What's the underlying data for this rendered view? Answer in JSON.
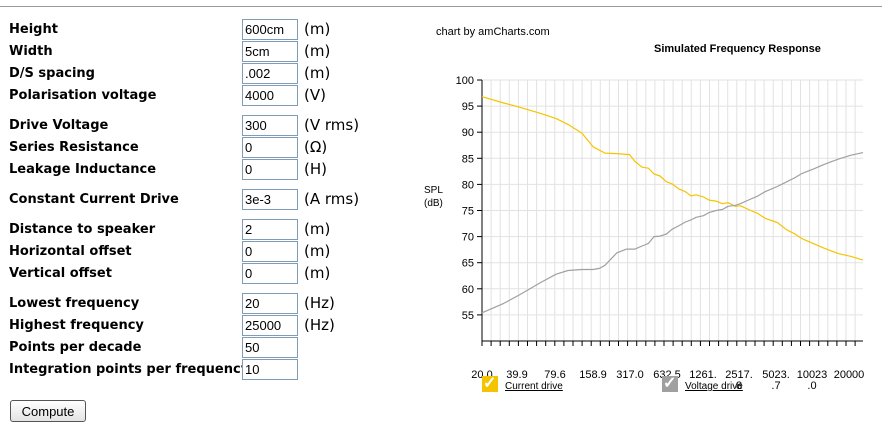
{
  "form": {
    "rows": [
      {
        "label": "Height",
        "value": "600cm",
        "unit": "(m)"
      },
      {
        "label": "Width",
        "value": "5cm",
        "unit": "(m)"
      },
      {
        "label": "D/S spacing",
        "value": ".002",
        "unit": "(m)"
      },
      {
        "label": "Polarisation voltage",
        "value": "4000",
        "unit": "(V)"
      },
      {
        "label": "Drive Voltage",
        "value": "300",
        "unit": "(V rms)"
      },
      {
        "label": "Series Resistance",
        "value": "0",
        "unit": "(Ω)"
      },
      {
        "label": "Leakage Inductance",
        "value": "0",
        "unit": "(H)"
      },
      {
        "label": "Constant Current Drive",
        "value": "3e-3",
        "unit": "(A rms)"
      },
      {
        "label": "Distance to speaker",
        "value": "2",
        "unit": "(m)"
      },
      {
        "label": "Horizontal offset",
        "value": "0",
        "unit": "(m)"
      },
      {
        "label": "Vertical offset",
        "value": "0",
        "unit": "(m)"
      },
      {
        "label": "Lowest frequency",
        "value": "20",
        "unit": "(Hz)"
      },
      {
        "label": "Highest frequency",
        "value": "25000",
        "unit": "(Hz)"
      },
      {
        "label": "Points per decade",
        "value": "50",
        "unit": ""
      },
      {
        "label": "Integration points per frequency",
        "value": "10",
        "unit": ""
      }
    ],
    "compute_label": "Compute"
  },
  "chart_data": {
    "type": "line",
    "credit": "chart by amCharts.com",
    "title": "Simulated Frequency Response",
    "ylabel": "SPL\n(dB)",
    "ylim": [
      50,
      100
    ],
    "y_ticks": [
      55,
      60,
      65,
      70,
      75,
      80,
      85,
      90,
      95,
      100
    ],
    "grid": true,
    "x_tick_labels": [
      [
        "20.0"
      ],
      [
        "39.9"
      ],
      [
        "79.6"
      ],
      [
        "158.9"
      ],
      [
        "317.0"
      ],
      [
        "632.5"
      ],
      [
        "1261."
      ],
      [
        "2517.",
        "8"
      ],
      [
        "5023.",
        ".7"
      ],
      [
        "10023",
        ".0"
      ],
      [
        "20000"
      ]
    ],
    "colors": {
      "current": "#f5c400",
      "voltage": "#a0a0a0"
    },
    "series": [
      {
        "name": "Current drive",
        "x": [
          20,
          30,
          40,
          60,
          80,
          100,
          130,
          160,
          200,
          250,
          317,
          350,
          400,
          450,
          500,
          560,
          632.5,
          700,
          800,
          900,
          1000,
          1100,
          1261,
          1400,
          1600,
          1800,
          2000,
          2300,
          2517.8,
          3000,
          3500,
          4000,
          5023.7,
          6000,
          7000,
          8000,
          10023,
          12000,
          14000,
          16000,
          20000,
          25000
        ],
        "values": [
          96.8,
          95.6,
          94.8,
          93.6,
          92.6,
          91.5,
          89.8,
          87.2,
          86.0,
          85.9,
          85.7,
          84.4,
          83.3,
          83.1,
          82.0,
          81.6,
          80.5,
          80.1,
          79.1,
          78.6,
          77.8,
          78.0,
          77.6,
          77.0,
          76.8,
          76.3,
          76.5,
          75.8,
          75.9,
          75.1,
          74.4,
          73.5,
          72.7,
          71.3,
          70.5,
          69.6,
          68.6,
          67.8,
          67.2,
          66.7,
          66.2,
          65.5
        ]
      },
      {
        "name": "Voltage drive",
        "x": [
          20,
          30,
          40,
          60,
          80,
          100,
          130,
          160,
          180,
          200,
          250,
          300,
          350,
          400,
          450,
          500,
          560,
          632.5,
          700,
          800,
          900,
          1000,
          1100,
          1261,
          1400,
          1600,
          1800,
          2000,
          2300,
          2517.8,
          3000,
          3500,
          4000,
          5023.7,
          6000,
          7000,
          8000,
          10023,
          12000,
          14000,
          16000,
          20000,
          25000
        ],
        "values": [
          55.4,
          57.2,
          58.8,
          61.2,
          62.8,
          63.5,
          63.7,
          63.7,
          63.9,
          64.5,
          66.9,
          67.6,
          67.6,
          68.2,
          68.7,
          70.0,
          70.1,
          70.5,
          71.4,
          72.1,
          72.8,
          73.2,
          73.7,
          74.0,
          74.6,
          75.0,
          75.2,
          75.8,
          76.0,
          76.3,
          77.1,
          77.8,
          78.6,
          79.6,
          80.5,
          81.3,
          82.1,
          83.0,
          83.8,
          84.4,
          84.9,
          85.6,
          86.1
        ]
      }
    ],
    "legend": "bottom"
  }
}
